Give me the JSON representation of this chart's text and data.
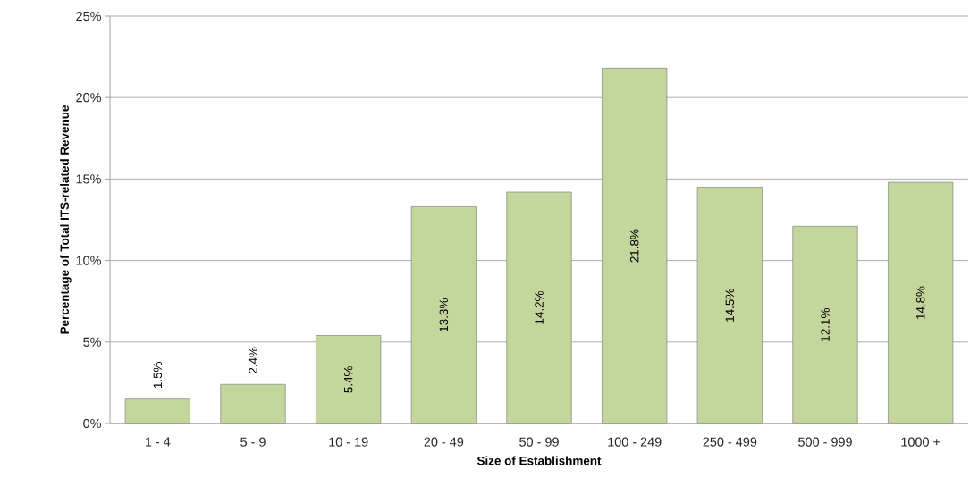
{
  "chart_data": {
    "type": "bar",
    "xlabel": "Size of Establishment",
    "ylabel": "Percentage of Total ITS-related Revenue",
    "categories": [
      "1 - 4",
      "5 - 9",
      "10 - 19",
      "20 - 49",
      "50 - 99",
      "100 - 249",
      "250 - 499",
      "500 - 999",
      "1000 +"
    ],
    "values": [
      1.5,
      2.4,
      5.4,
      13.3,
      14.2,
      21.8,
      14.5,
      12.1,
      14.8
    ],
    "value_labels": [
      "1.5%",
      "2.4%",
      "5.4%",
      "13.3%",
      "14.2%",
      "21.8%",
      "14.5%",
      "12.1%",
      "14.8%"
    ],
    "color": "#c3d69b",
    "ylim": [
      0,
      25
    ],
    "yticks": [
      {
        "value": 0,
        "label": "0%"
      },
      {
        "value": 5,
        "label": "5%"
      },
      {
        "value": 10,
        "label": "10%"
      },
      {
        "value": 15,
        "label": "15%"
      },
      {
        "value": 20,
        "label": "20%"
      },
      {
        "value": 25,
        "label": "25%"
      }
    ],
    "grid": "y"
  }
}
